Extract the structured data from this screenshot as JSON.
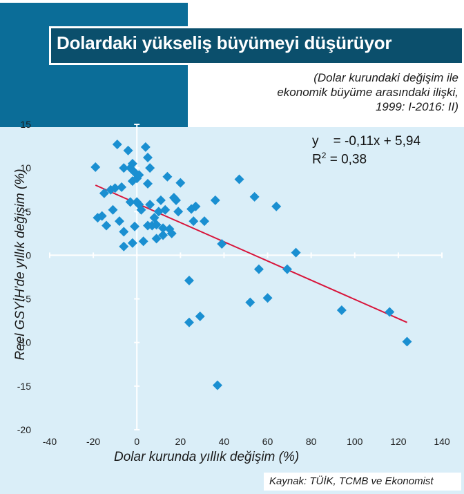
{
  "title": "Dolardaki yükseliş büyümeyi düşürüyor",
  "subtitle": [
    "(Dolar kurundaki değişim ile",
    "ekonomik büyüme arasındaki ilişki,",
    "1999: I-2016: II)"
  ],
  "equation": {
    "line1": "y    = -0,11x + 5,94",
    "line2_prefix": "R",
    "line2_sup": "2",
    "line2_rest": " = 0,38"
  },
  "source": "Kaynak: TÜİK, TCMB ve Ekonomist",
  "colors": {
    "marker": "#1a8fd1",
    "trend": "#d8143a",
    "panel": "#daeef8",
    "corner": "#0b6d98",
    "titlebar": "#0b4f6c"
  },
  "chart_data": {
    "type": "scatter",
    "xlabel": "Dolar kurunda yıllık değişim (%)",
    "ylabel": "Reel GSYİH'de yıllık değişim (%)",
    "xlim": [
      -40,
      140
    ],
    "ylim": [
      -20,
      15
    ],
    "xticks": [
      -40,
      -20,
      0,
      20,
      40,
      60,
      80,
      100,
      120,
      140
    ],
    "yticks": [
      -20,
      -15,
      -10,
      -5,
      0,
      5,
      10,
      15
    ],
    "trendline": {
      "slope": -0.11,
      "intercept": 5.94,
      "x_from": -19,
      "x_to": 124
    },
    "points": [
      [
        -19,
        10.1
      ],
      [
        -18,
        4.3
      ],
      [
        -16,
        4.5
      ],
      [
        -15,
        7.1
      ],
      [
        -14,
        3.4
      ],
      [
        -12,
        7.5
      ],
      [
        -11,
        5.2
      ],
      [
        -10,
        7.7
      ],
      [
        -9,
        12.7
      ],
      [
        -8,
        3.9
      ],
      [
        -7,
        7.8
      ],
      [
        -6,
        2.7
      ],
      [
        -6,
        10.0
      ],
      [
        -6,
        1.0
      ],
      [
        -4,
        12.0
      ],
      [
        -3,
        10.0
      ],
      [
        -3,
        6.1
      ],
      [
        -2,
        10.5
      ],
      [
        -2,
        8.5
      ],
      [
        -2,
        1.4
      ],
      [
        -1,
        9.5
      ],
      [
        -1,
        3.3
      ],
      [
        0,
        8.8
      ],
      [
        0,
        6.1
      ],
      [
        1,
        5.8
      ],
      [
        1,
        9.2
      ],
      [
        2,
        5.2
      ],
      [
        3,
        1.6
      ],
      [
        4,
        12.4
      ],
      [
        5,
        8.2
      ],
      [
        5,
        11.2
      ],
      [
        5,
        3.4
      ],
      [
        6,
        10.0
      ],
      [
        6,
        5.8
      ],
      [
        7,
        3.4
      ],
      [
        8,
        4.3
      ],
      [
        9,
        3.5
      ],
      [
        9,
        1.9
      ],
      [
        10,
        5.0
      ],
      [
        11,
        6.3
      ],
      [
        12,
        3.1
      ],
      [
        12,
        2.3
      ],
      [
        13,
        5.2
      ],
      [
        14,
        9.0
      ],
      [
        15,
        3.0
      ],
      [
        16,
        2.5
      ],
      [
        17,
        6.6
      ],
      [
        18,
        6.3
      ],
      [
        19,
        5.0
      ],
      [
        20,
        8.3
      ],
      [
        24,
        -2.9
      ],
      [
        24,
        -7.7
      ],
      [
        25,
        5.3
      ],
      [
        26,
        3.9
      ],
      [
        27,
        5.6
      ],
      [
        29,
        -7.0
      ],
      [
        31,
        3.9
      ],
      [
        36,
        6.3
      ],
      [
        37,
        -14.9
      ],
      [
        39,
        1.3
      ],
      [
        47,
        8.7
      ],
      [
        52,
        -5.4
      ],
      [
        54,
        6.7
      ],
      [
        56,
        -1.6
      ],
      [
        60,
        -4.9
      ],
      [
        64,
        5.6
      ],
      [
        69,
        -1.6
      ],
      [
        73,
        0.3
      ],
      [
        94,
        -6.3
      ],
      [
        116,
        -6.5
      ],
      [
        124,
        -9.9
      ]
    ]
  }
}
